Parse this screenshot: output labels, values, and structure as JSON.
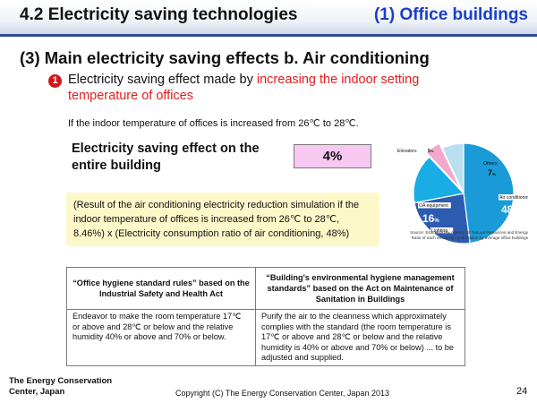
{
  "header": {
    "title": "4.2 Electricity saving technologies",
    "section": "(1) Office buildings"
  },
  "main_heading": "(3) Main electricity saving effects  b. Air conditioning",
  "bullet": {
    "marker": "1",
    "text_plain": "Electricity saving effect made by ",
    "text_highlight": "increasing the indoor setting temperature of offices"
  },
  "condition": "If the indoor temperature of offices is increased from 26℃ to 28℃.",
  "effect": {
    "label": "Electricity saving effect on the entire building",
    "value": "4%"
  },
  "result_note": "(Result of the air conditioning electricity reduction simulation if the indoor temperature of offices is increased from 26℃ to 28℃, 8.46%) x (Electricity consumption ratio of air conditioning, 48%)",
  "chart_data": {
    "type": "pie",
    "slices": [
      {
        "name": "Air conditioning",
        "value": 48,
        "value_label": "48",
        "color": "#1a9bd7"
      },
      {
        "name": "Lighting",
        "value": 24,
        "value_label": "24",
        "color": "#2d5bb0"
      },
      {
        "name": "OA equipment",
        "value": 16,
        "value_label": "16",
        "color": "#18aee5"
      },
      {
        "name": "Elevators",
        "value": 5,
        "value_label": "5",
        "color": "#f2a8c9"
      },
      {
        "name": "Others",
        "value": 7,
        "value_label": "7",
        "color": "#b9dff0"
      }
    ],
    "unit": "%",
    "caption": "Ratio of each electricity consumption by average office buildings",
    "source": "Source: Estimation by Agency for Natural Resources and Energy"
  },
  "table": {
    "headers": [
      "“Office hygiene standard rules” based on the Industrial Safety and Health Act",
      "“Building's environmental hygiene management standards” based on the Act on Maintenance of Sanitation in Buildings"
    ],
    "row": [
      "Endeavor to make the room temperature 17℃ or above and 28℃ or below and the relative humidity 40% or above and 70% or below.",
      "Purify the air to the cleanness which approximately complies with the standard (the room temperature is 17℃ or above and 28℃ or below and the relative humidity is 40% or above and 70% or below) ... to be adjusted and supplied."
    ]
  },
  "footer": {
    "org": "The Energy Conservation Center, Japan",
    "copyright": "Copyright (C) The Energy Conservation Center, Japan 2013",
    "page": "24"
  }
}
